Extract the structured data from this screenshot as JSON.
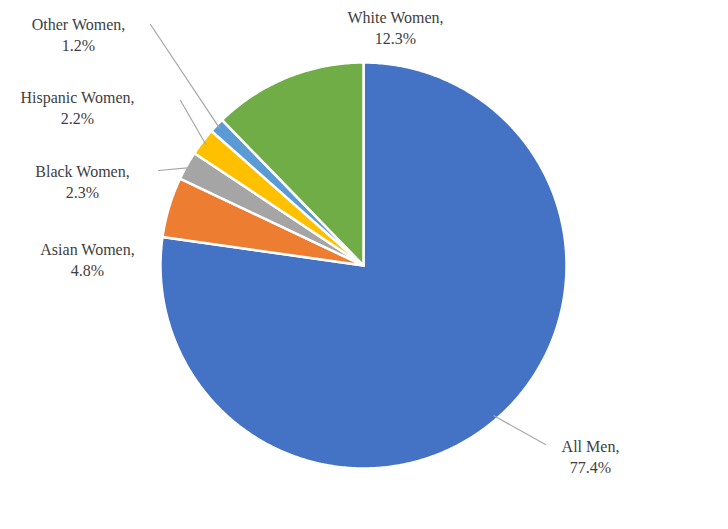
{
  "chart_data": {
    "type": "pie",
    "categories": [
      "All Men,",
      "Asian Women,",
      "Black Women,",
      "Hispanic Women,",
      "Other Women,",
      "White Women,"
    ],
    "values": [
      77.4,
      4.8,
      2.3,
      2.2,
      1.2,
      12.3
    ],
    "value_labels": [
      "77.4%",
      "4.8%",
      "2.3%",
      "2.2%",
      "1.2%",
      "12.3%"
    ],
    "colors": [
      "#4472c4",
      "#ed7d31",
      "#a5a5a5",
      "#ffc000",
      "#5b9bd5",
      "#70ad47"
    ],
    "data_labels": true
  }
}
